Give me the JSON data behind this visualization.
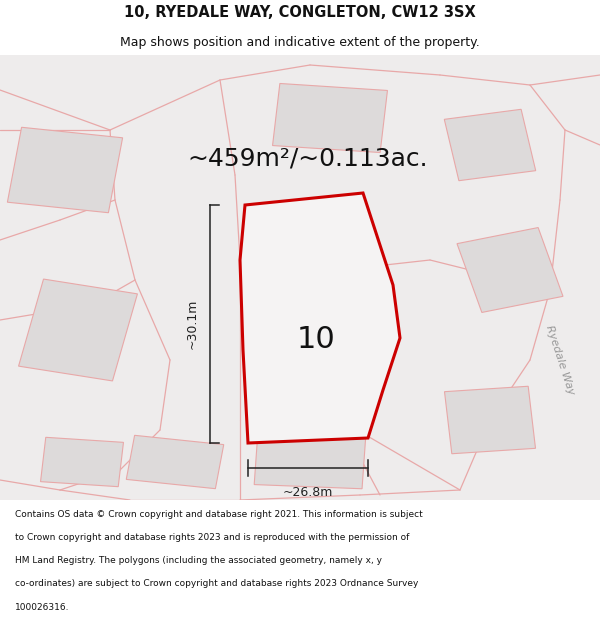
{
  "title_line1": "10, RYEDALE WAY, CONGLETON, CW12 3SX",
  "title_line2": "Map shows position and indicative extent of the property.",
  "area_label": "~459m²/~0.113ac.",
  "width_label": "~26.8m",
  "height_label": "~30.1m",
  "number_label": "10",
  "road_label": "Ryedale Way",
  "footer_lines": [
    "Contains OS data © Crown copyright and database right 2021. This information is subject",
    "to Crown copyright and database rights 2023 and is reproduced with the permission of",
    "HM Land Registry. The polygons (including the associated geometry, namely x, y",
    "co-ordinates) are subject to Crown copyright and database rights 2023 Ordnance Survey",
    "100026316."
  ],
  "map_bg": "#eeecec",
  "plot_fill": "#f5f3f3",
  "plot_border": "#cc0000",
  "building_fill": "#dddada",
  "road_line_color": "#e8a8a8",
  "dim_line_color": "#222222",
  "title_color": "#111111",
  "footer_color": "#111111",
  "title_fontsize": 10.5,
  "subtitle_fontsize": 9,
  "area_fontsize": 18,
  "number_fontsize": 22,
  "dim_fontsize": 9,
  "footer_fontsize": 6.5,
  "road_label_fontsize": 8
}
